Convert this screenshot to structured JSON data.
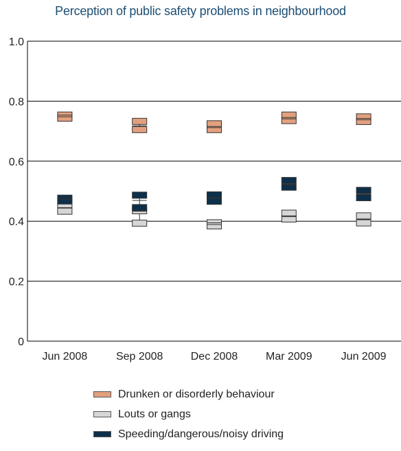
{
  "chart_data": {
    "type": "range-interval",
    "title": "Perception of public safety problems in neighbourhood",
    "xlabel": "",
    "ylabel": "",
    "ylim": [
      0,
      1.0
    ],
    "yticks": [
      "0",
      "0.2",
      "0.4",
      "0.6",
      "0.8",
      "1.0"
    ],
    "categories": [
      "Jun 2008",
      "Sep 2008",
      "Dec 2008",
      "Mar 2009",
      "Jun 2009"
    ],
    "grid": true,
    "legend_position": "bottom",
    "series": [
      {
        "name": "Drunken or disorderly behaviour",
        "color": "#e2a07f",
        "estimate": [
          0.748,
          0.718,
          0.712,
          0.741,
          0.738
        ],
        "lower": [
          0.733,
          0.695,
          0.695,
          0.725,
          0.722
        ],
        "upper": [
          0.764,
          0.743,
          0.735,
          0.764,
          0.758
        ]
      },
      {
        "name": "Louts or gangs",
        "color": "#d6d6d6",
        "estimate": [
          0.445,
          0.433,
          0.389,
          0.415,
          0.405
        ],
        "lower": [
          0.423,
          0.383,
          0.374,
          0.397,
          0.384
        ],
        "upper": [
          0.463,
          0.445,
          0.405,
          0.437,
          0.428
        ]
      },
      {
        "name": "Speeding/dangerous/noisy driving",
        "color": "#0d2f4a",
        "estimate": [
          0.472,
          0.469,
          0.478,
          0.522,
          0.491
        ],
        "lower": [
          0.457,
          0.435,
          0.456,
          0.503,
          0.468
        ],
        "upper": [
          0.487,
          0.497,
          0.498,
          0.546,
          0.513
        ]
      }
    ]
  }
}
